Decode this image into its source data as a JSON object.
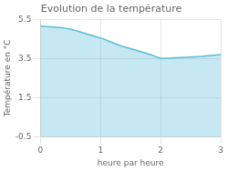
{
  "chart_data": {
    "type": "line",
    "title": "Evolution de la température",
    "xlabel": "heure par heure",
    "ylabel": "Température en °C",
    "x": [
      0,
      0.17,
      0.33,
      0.5,
      0.67,
      0.83,
      1.0,
      1.17,
      1.33,
      1.5,
      1.67,
      1.83,
      2.0,
      2.17,
      2.33,
      2.5,
      2.67,
      2.83,
      3.0
    ],
    "values": [
      5.15,
      5.12,
      5.08,
      5.0,
      4.85,
      4.7,
      4.55,
      4.35,
      4.15,
      4.0,
      3.85,
      3.7,
      3.5,
      3.52,
      3.55,
      3.57,
      3.6,
      3.65,
      3.7
    ],
    "color": "#5bbcda",
    "xlim": [
      0,
      3
    ],
    "ylim": [
      -0.5,
      5.5
    ],
    "xticks": [
      0,
      1,
      2,
      3
    ],
    "yticks": [
      -0.5,
      1.5,
      3.5,
      5.5
    ],
    "grid": true
  }
}
